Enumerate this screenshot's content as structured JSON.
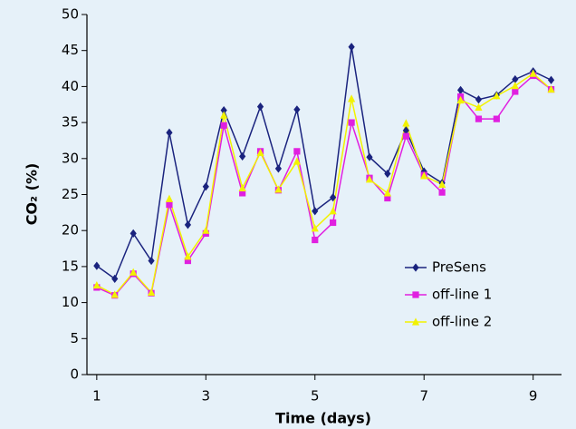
{
  "chart_data": {
    "type": "line",
    "x_label": "Time (days)",
    "y_label": "CO₂ (%)",
    "x": [
      1,
      1.33,
      1.67,
      2,
      2.33,
      2.67,
      3,
      3.33,
      3.67,
      4,
      4.33,
      4.67,
      5,
      5.33,
      5.67,
      6,
      6.33,
      6.67,
      7,
      7.33,
      7.67,
      8,
      8.33,
      8.67,
      9,
      9.33
    ],
    "series": [
      {
        "name": "PreSens",
        "color": "#1a237e",
        "marker": "diamond",
        "values": [
          15.1,
          13.3,
          19.6,
          15.8,
          33.6,
          20.8,
          26.1,
          36.7,
          30.3,
          37.2,
          28.6,
          36.8,
          22.7,
          24.6,
          45.5,
          30.2,
          27.9,
          33.9,
          28.2,
          26.6,
          39.5,
          38.2,
          38.8,
          41.0,
          42.1,
          40.9
        ]
      },
      {
        "name": "off-line 1",
        "color": "#e020e0",
        "marker": "square",
        "values": [
          12.1,
          11.0,
          14.0,
          11.3,
          23.6,
          15.8,
          19.6,
          34.6,
          25.2,
          31.0,
          25.6,
          31.0,
          18.7,
          21.1,
          35.0,
          27.3,
          24.5,
          33.1,
          27.7,
          25.3,
          38.6,
          35.5,
          35.5,
          39.3,
          41.5,
          39.6
        ]
      },
      {
        "name": "off-line 2",
        "color": "#f2f200",
        "marker": "triangle",
        "values": [
          12.4,
          11.1,
          14.2,
          11.4,
          24.4,
          16.4,
          20.0,
          36.0,
          25.9,
          30.8,
          25.7,
          29.6,
          20.3,
          22.7,
          38.3,
          27.1,
          25.2,
          34.9,
          27.6,
          26.4,
          38.1,
          37.1,
          38.7,
          40.1,
          41.8,
          39.6
        ]
      }
    ],
    "xlim": [
      0.82,
      9.52
    ],
    "xticks": [
      1,
      3,
      5,
      7,
      9
    ],
    "ylim": [
      0,
      50
    ],
    "yticks": [
      0,
      5,
      10,
      15,
      20,
      25,
      30,
      35,
      40,
      45,
      50
    ],
    "grid": false,
    "legend": "lower right"
  }
}
